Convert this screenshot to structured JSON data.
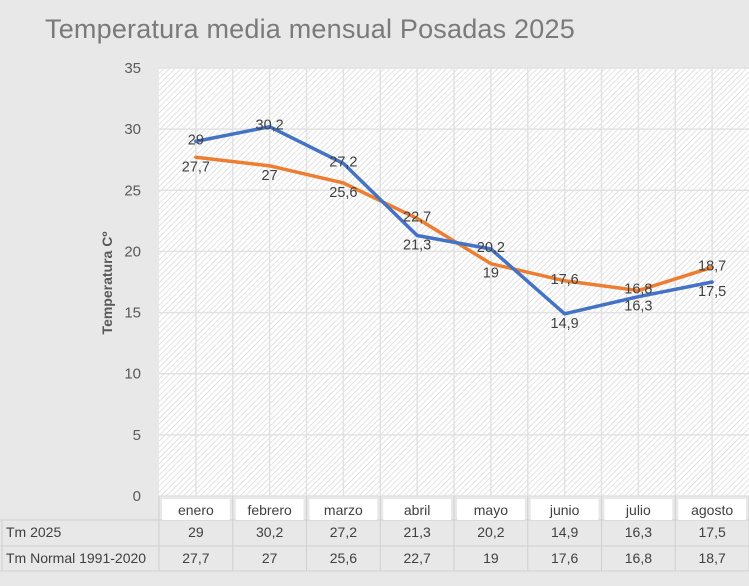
{
  "chart_data": {
    "type": "line",
    "title": "Temperatura media mensual Posadas 2025",
    "ylabel": "Temperatura Cº",
    "xlabel": "",
    "ylim": [
      0,
      35
    ],
    "yticks": [
      "0",
      "5",
      "10",
      "15",
      "20",
      "25",
      "30",
      "35"
    ],
    "grid": true,
    "legend": "data-table-bottom",
    "categories": [
      "enero",
      "febrero",
      "marzo",
      "abril",
      "mayo",
      "junio",
      "julio",
      "agosto"
    ],
    "series": [
      {
        "name": "Tm 2025",
        "color": "#4472c4",
        "values": [
          29,
          30.2,
          27.2,
          21.3,
          20.2,
          14.9,
          16.3,
          17.5
        ],
        "labels": [
          "29",
          "30,2",
          "27,2",
          "21,3",
          "20,2",
          "14,9",
          "16,3",
          "17,5"
        ]
      },
      {
        "name": "Tm Normal 1991-2020",
        "color": "#ed7d31",
        "values": [
          27.7,
          27,
          25.6,
          22.7,
          19,
          17.6,
          16.8,
          18.7
        ],
        "labels": [
          "27,7",
          "27",
          "25,6",
          "22,7",
          "19",
          "17,6",
          "16,8",
          "18,7"
        ]
      }
    ]
  }
}
